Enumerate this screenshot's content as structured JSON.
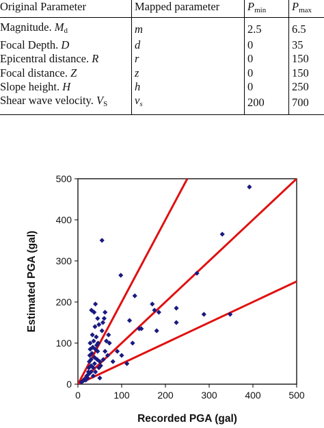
{
  "table": {
    "headers": [
      "Original Parameter",
      "Mapped parameter",
      "P",
      "P"
    ],
    "header_subs": [
      "min",
      "max"
    ],
    "rows": [
      {
        "label": "Magnitude. ",
        "sym": "M",
        "sub": "d",
        "mapped": "m",
        "msub": "",
        "pmin": "2.5",
        "pmax": "6.5"
      },
      {
        "label": "Focal Depth. ",
        "sym": "D",
        "sub": "",
        "mapped": "d",
        "msub": "",
        "pmin": "0",
        "pmax": "35"
      },
      {
        "label": "Epicentral distance. ",
        "sym": "R",
        "sub": "",
        "mapped": "r",
        "msub": "",
        "pmin": "0",
        "pmax": "150"
      },
      {
        "label": "Focal distance. ",
        "sym": "Z",
        "sub": "",
        "mapped": "z",
        "msub": "",
        "pmin": "0",
        "pmax": "150"
      },
      {
        "label": "Slope height. ",
        "sym": "H",
        "sub": "",
        "mapped": "h",
        "msub": "",
        "pmin": "0",
        "pmax": "250"
      },
      {
        "label": "Shear wave velocity. ",
        "sym": "V",
        "sub": "S",
        "mapped": "v",
        "msub": "s",
        "pmin": "200",
        "pmax": "700"
      }
    ]
  },
  "chart_data": {
    "type": "scatter",
    "xlabel": "Recorded PGA (gal)",
    "ylabel": "Estimated PGA  (gal)",
    "xlim": [
      0,
      500
    ],
    "ylim": [
      0,
      500
    ],
    "xticks": [
      0,
      100,
      200,
      300,
      400,
      500
    ],
    "yticks": [
      0,
      100,
      200,
      300,
      400,
      500
    ],
    "grid": false,
    "legend": "none",
    "marker_color": "#1a1a80",
    "line_color": "#e01010",
    "lines": [
      {
        "slope": 2,
        "x": [
          0,
          250
        ],
        "y": [
          0,
          500
        ]
      },
      {
        "slope": 1,
        "x": [
          0,
          500
        ],
        "y": [
          0,
          500
        ]
      },
      {
        "slope": 0.5,
        "x": [
          0,
          500
        ],
        "y": [
          0,
          250
        ]
      }
    ],
    "points": [
      [
        8,
        5
      ],
      [
        12,
        8
      ],
      [
        15,
        12
      ],
      [
        18,
        10
      ],
      [
        20,
        20
      ],
      [
        22,
        15
      ],
      [
        24,
        30
      ],
      [
        25,
        25
      ],
      [
        25,
        40
      ],
      [
        26,
        55
      ],
      [
        27,
        70
      ],
      [
        28,
        85
      ],
      [
        28,
        100
      ],
      [
        30,
        30
      ],
      [
        30,
        45
      ],
      [
        30,
        60
      ],
      [
        31,
        180
      ],
      [
        32,
        75
      ],
      [
        33,
        120
      ],
      [
        34,
        90
      ],
      [
        35,
        40
      ],
      [
        35,
        20
      ],
      [
        36,
        105
      ],
      [
        37,
        175
      ],
      [
        38,
        65
      ],
      [
        38,
        50
      ],
      [
        39,
        140
      ],
      [
        40,
        85
      ],
      [
        40,
        195
      ],
      [
        40,
        30
      ],
      [
        42,
        115
      ],
      [
        43,
        95
      ],
      [
        44,
        60
      ],
      [
        45,
        80
      ],
      [
        45,
        160
      ],
      [
        46,
        100
      ],
      [
        48,
        145
      ],
      [
        48,
        40
      ],
      [
        50,
        15
      ],
      [
        50,
        55
      ],
      [
        52,
        45
      ],
      [
        55,
        130
      ],
      [
        55,
        350
      ],
      [
        57,
        150
      ],
      [
        58,
        60
      ],
      [
        60,
        160
      ],
      [
        62,
        175
      ],
      [
        62,
        80
      ],
      [
        65,
        105
      ],
      [
        68,
        70
      ],
      [
        70,
        120
      ],
      [
        72,
        100
      ],
      [
        80,
        55
      ],
      [
        90,
        80
      ],
      [
        98,
        265
      ],
      [
        100,
        70
      ],
      [
        112,
        50
      ],
      [
        118,
        155
      ],
      [
        125,
        100
      ],
      [
        130,
        215
      ],
      [
        140,
        135
      ],
      [
        145,
        135
      ],
      [
        170,
        195
      ],
      [
        175,
        180
      ],
      [
        180,
        130
      ],
      [
        185,
        175
      ],
      [
        225,
        185
      ],
      [
        225,
        150
      ],
      [
        272,
        270
      ],
      [
        288,
        170
      ],
      [
        330,
        365
      ],
      [
        348,
        170
      ],
      [
        392,
        480
      ]
    ]
  }
}
